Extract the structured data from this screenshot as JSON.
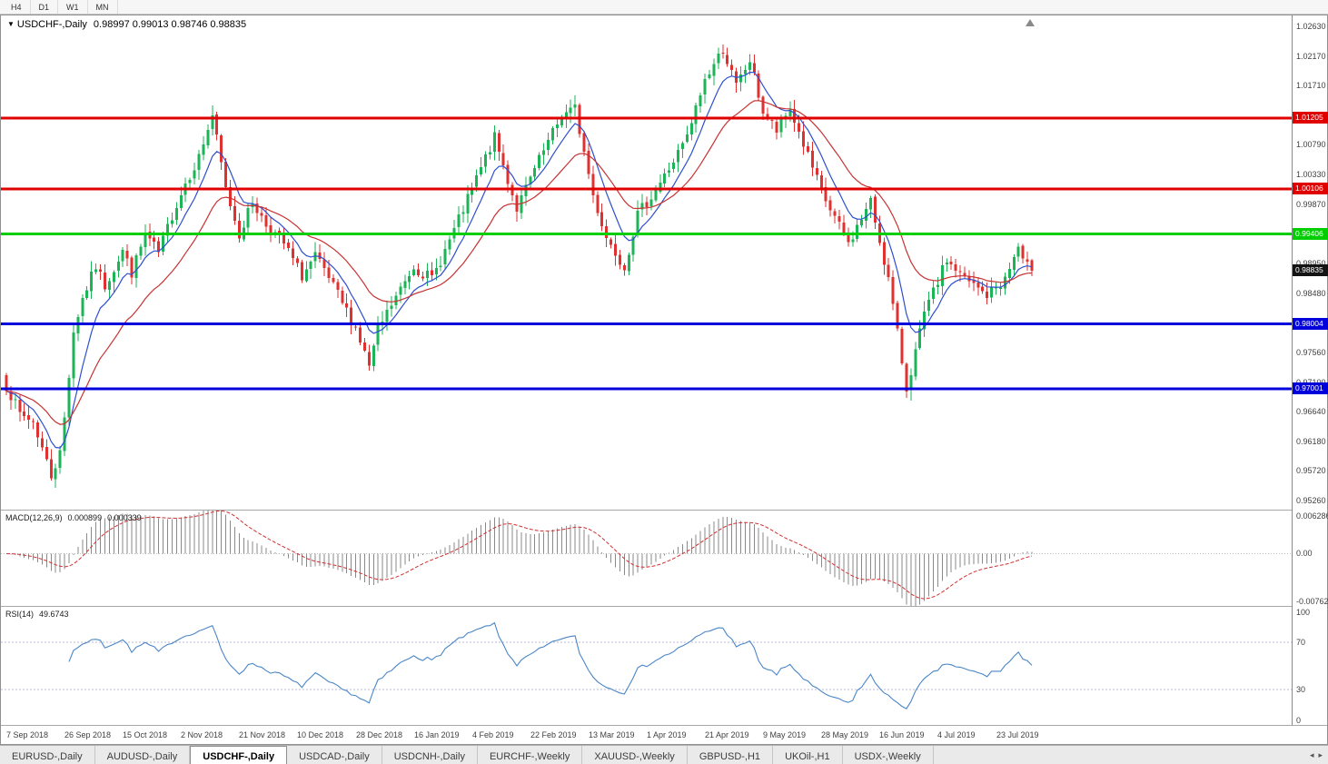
{
  "toolbar": {
    "timeframes": [
      "H4",
      "D1",
      "W1",
      "MN"
    ]
  },
  "window": {
    "title_symbol": "USDCHF-,Daily",
    "title_ohlc": "0.98997 0.99013 0.98746 0.98835"
  },
  "colors": {
    "candle_up": "#1db357",
    "candle_down": "#e03131",
    "ma_fast": "#2e4fd0",
    "ma_slow": "#c83232",
    "hline_red": "#e00000",
    "hline_green": "#00ce00",
    "hline_blue": "#0000dd",
    "bid_badge": "#141414",
    "macd_histogram": "#8a8a8a",
    "macd_signal": "#d03030",
    "rsi_line": "#4a86c8",
    "rsi_level": "#b9b9d9"
  },
  "chart_data": {
    "type": "candlestick",
    "symbol": "USDCHF",
    "period": "Daily",
    "open": 0.98997,
    "high": 0.99013,
    "low": 0.98746,
    "close": 0.98835,
    "bars": 230,
    "price_axis": {
      "top": 1.028,
      "bottom": 0.9512,
      "labels": [
        "1.02630",
        "1.02170",
        "1.01710",
        "1.00790",
        "1.00330",
        "0.99870",
        "0.98950",
        "0.98480",
        "0.97560",
        "0.97100",
        "0.96640",
        "0.96180",
        "0.95720",
        "0.95260"
      ]
    },
    "close_anchors": [
      [
        0,
        0.9705
      ],
      [
        3,
        0.966
      ],
      [
        6,
        0.965
      ],
      [
        10,
        0.9565
      ],
      [
        12,
        0.96
      ],
      [
        13,
        0.9655
      ],
      [
        15,
        0.979
      ],
      [
        17,
        0.984
      ],
      [
        20,
        0.989
      ],
      [
        22,
        0.986
      ],
      [
        26,
        0.9915
      ],
      [
        28,
        0.988
      ],
      [
        31,
        0.994
      ],
      [
        34,
        0.991
      ],
      [
        37,
        0.997
      ],
      [
        40,
        1.002
      ],
      [
        43,
        1.006
      ],
      [
        46,
        1.0125
      ],
      [
        49,
        1.001
      ],
      [
        52,
        0.994
      ],
      [
        55,
        0.999
      ],
      [
        58,
        0.9955
      ],
      [
        62,
        0.9925
      ],
      [
        66,
        0.9875
      ],
      [
        69,
        0.9905
      ],
      [
        72,
        0.987
      ],
      [
        74,
        0.9845
      ],
      [
        78,
        0.9795
      ],
      [
        81,
        0.9735
      ],
      [
        83,
        0.979
      ],
      [
        86,
        0.983
      ],
      [
        91,
        0.989
      ],
      [
        95,
        0.987
      ],
      [
        99,
        0.993
      ],
      [
        104,
        1.001
      ],
      [
        109,
        1.009
      ],
      [
        114,
        0.998
      ],
      [
        118,
        1.004
      ],
      [
        124,
        1.0125
      ],
      [
        127,
        1.0135
      ],
      [
        131,
        1.0
      ],
      [
        134,
        0.9935
      ],
      [
        138,
        0.989
      ],
      [
        141,
        0.997
      ],
      [
        143,
        0.999
      ],
      [
        147,
        1.003
      ],
      [
        152,
        1.009
      ],
      [
        156,
        1.018
      ],
      [
        160,
        1.0228
      ],
      [
        163,
        1.017
      ],
      [
        166,
        1.021
      ],
      [
        169,
        1.013
      ],
      [
        172,
        1.01
      ],
      [
        175,
        1.0135
      ],
      [
        178,
        1.008
      ],
      [
        182,
        1.0005
      ],
      [
        188,
        0.9925
      ],
      [
        193,
        0.999
      ],
      [
        197,
        0.987
      ],
      [
        201,
        0.97
      ],
      [
        205,
        0.9815
      ],
      [
        210,
        0.99
      ],
      [
        214,
        0.987
      ],
      [
        219,
        0.9845
      ],
      [
        223,
        0.987
      ],
      [
        226,
        0.992
      ],
      [
        227,
        0.9895
      ],
      [
        229,
        0.98835
      ]
    ],
    "hlines": [
      {
        "price": 1.01205,
        "label": "1.01205",
        "color": "#e00000"
      },
      {
        "price": 1.00106,
        "label": "1.00106",
        "color": "#e00000"
      },
      {
        "price": 0.99406,
        "label": "0.99406",
        "color": "#00ce00"
      },
      {
        "price": 0.98004,
        "label": "0.98004",
        "color": "#0000dd"
      },
      {
        "price": 0.97001,
        "label": "0.97001",
        "color": "#0000dd"
      }
    ],
    "bid_badge": {
      "price": 0.98835,
      "label": "0.98835"
    },
    "ma_fast_period": 8,
    "ma_slow_period": 22,
    "x_labels": [
      {
        "idx": 0,
        "label": "7 Sep 2018"
      },
      {
        "idx": 13,
        "label": "26 Sep 2018"
      },
      {
        "idx": 26,
        "label": "15 Oct 2018"
      },
      {
        "idx": 39,
        "label": "2 Nov 2018"
      },
      {
        "idx": 52,
        "label": "21 Nov 2018"
      },
      {
        "idx": 65,
        "label": "10 Dec 2018"
      },
      {
        "idx": 78,
        "label": "28 Dec 2018"
      },
      {
        "idx": 91,
        "label": "16 Jan 2019"
      },
      {
        "idx": 104,
        "label": "4 Feb 2019"
      },
      {
        "idx": 117,
        "label": "22 Feb 2019"
      },
      {
        "idx": 130,
        "label": "13 Mar 2019"
      },
      {
        "idx": 143,
        "label": "1 Apr 2019"
      },
      {
        "idx": 156,
        "label": "21 Apr 2019"
      },
      {
        "idx": 169,
        "label": "9 May 2019"
      },
      {
        "idx": 182,
        "label": "28 May 2019"
      },
      {
        "idx": 195,
        "label": "16 Jun 2019"
      },
      {
        "idx": 208,
        "label": "4 Jul 2019"
      },
      {
        "idx": 221,
        "label": "23 Jul 2019"
      }
    ],
    "macd": {
      "name": "MACD(12,26,9)",
      "value_main": "0.000899",
      "value_signal": "0.000339",
      "fast": 12,
      "slow": 26,
      "signal_period": 9,
      "range": {
        "max": 0.0066,
        "min": -0.008
      },
      "axis_labels": [
        {
          "v": 0.006286,
          "label": "0.006286"
        },
        {
          "v": 0,
          "label": "0.00"
        },
        {
          "v": -0.00762,
          "label": "-0.00762"
        }
      ]
    },
    "rsi": {
      "name": "RSI(14)",
      "value": "49.6743",
      "period": 14,
      "levels": [
        70,
        30
      ],
      "axis_labels": [
        {
          "v": 100,
          "label": "100"
        },
        {
          "v": 70,
          "label": "70"
        },
        {
          "v": 30,
          "label": "30"
        },
        {
          "v": 0,
          "label": "0"
        }
      ]
    }
  },
  "tabbar": {
    "active": "USDCHF-,Daily",
    "tabs": [
      "EURUSD-,Daily",
      "AUDUSD-,Daily",
      "USDCHF-,Daily",
      "USDCAD-,Daily",
      "USDCNH-,Daily",
      "EURCHF-,Weekly",
      "XAUUSD-,Weekly",
      "GBPUSD-,H1",
      "UKOil-,H1",
      "USDX-,Weekly"
    ],
    "scroll_left": "◂",
    "scroll_right": "▸"
  }
}
